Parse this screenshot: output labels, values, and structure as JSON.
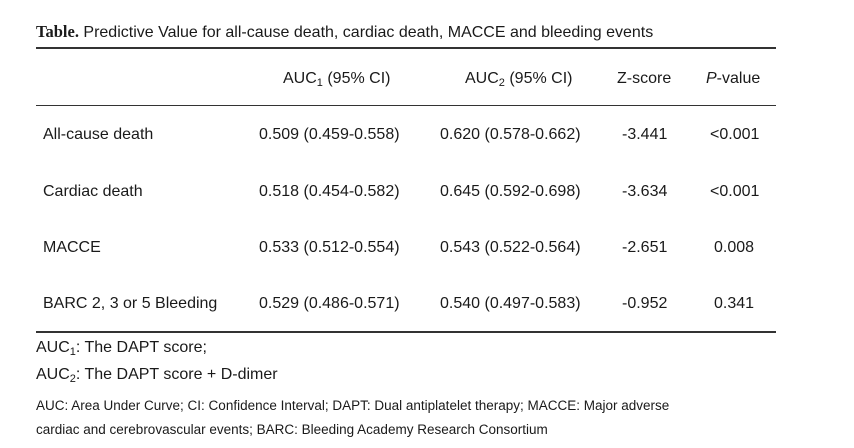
{
  "caption": {
    "lead": "Table.",
    "text": " Predictive Value for all-cause death, cardiac death, MACCE and bleeding events"
  },
  "headers": {
    "auc1_main": "AUC",
    "auc1_sub": "1",
    "auc1_rest": " (95% CI)",
    "auc2_main": "AUC",
    "auc2_sub": "2",
    "auc2_rest": " (95% CI)",
    "z": "Z-score",
    "p_ital": "P",
    "p_rest": "-value"
  },
  "rows": [
    {
      "label": "All-cause death",
      "auc1": "0.509 (0.459-0.558)",
      "auc2": "0.620 (0.578-0.662)",
      "z": "-3.441",
      "p": "<0.001"
    },
    {
      "label": "Cardiac death",
      "auc1": "0.518 (0.454-0.582)",
      "auc2": "0.645 (0.592-0.698)",
      "z": "-3.634",
      "p": "<0.001"
    },
    {
      "label": "MACCE",
      "auc1": "0.533 (0.512-0.554)",
      "auc2": "0.543 (0.522-0.564)",
      "z": "-2.651",
      "p": "0.008"
    },
    {
      "label": "BARC 2, 3 or 5 Bleeding",
      "auc1": "0.529 (0.486-0.571)",
      "auc2": "0.540 (0.497-0.583)",
      "z": "-0.952",
      "p": "0.341"
    }
  ],
  "footnotes": {
    "auc1_main": "AUC",
    "auc1_sub": "1",
    "auc1_text": ": The DAPT score;",
    "auc2_main": "AUC",
    "auc2_sub": "2",
    "auc2_text": ": The DAPT score + D-dimer",
    "abbrev_line1": "AUC: Area Under Curve; CI: Confidence Interval; DAPT: Dual antiplatelet therapy; MACCE: Major adverse",
    "abbrev_line2": "cardiac and cerebrovascular events; BARC: Bleeding Academy Research Consortium"
  }
}
